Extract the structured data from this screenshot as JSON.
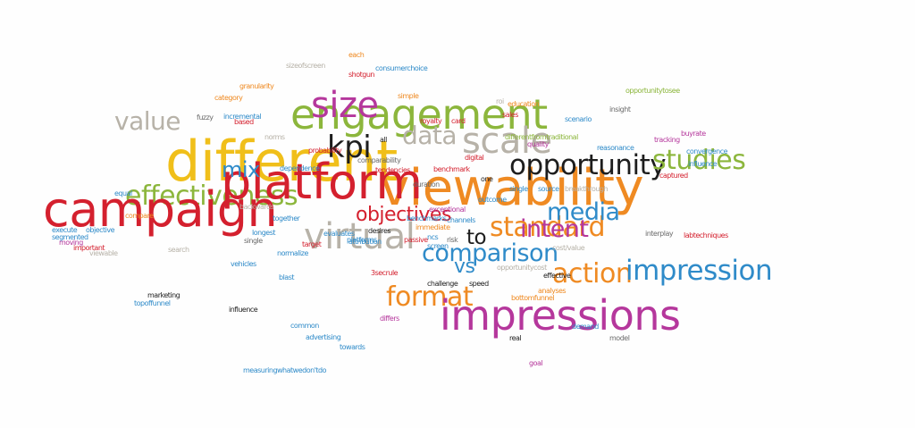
{
  "colors": {
    "red": "#d4202e",
    "green": "#8cb63c",
    "yellow": "#f0bf1a",
    "orange": "#ef8a22",
    "magenta": "#b5379c",
    "blue": "#2f8bc9",
    "black": "#1d1d1d",
    "gray": "#b7b2a8",
    "darkgray": "#6b6b6b"
  },
  "words": [
    {
      "text": "campaign",
      "color": "red",
      "size": 52
    },
    {
      "text": "platform",
      "color": "red",
      "size": 52
    },
    {
      "text": "engagement",
      "color": "green",
      "size": 44
    },
    {
      "text": "impressions",
      "color": "magenta",
      "size": 44
    },
    {
      "text": "different",
      "color": "yellow",
      "size": 56
    },
    {
      "text": "viewability",
      "color": "orange",
      "size": 52
    },
    {
      "text": "size",
      "color": "magenta",
      "size": 38
    },
    {
      "text": "scale",
      "color": "gray",
      "size": 38
    },
    {
      "text": "kpi",
      "color": "black",
      "size": 34
    },
    {
      "text": "opportunity",
      "color": "black",
      "size": 30
    },
    {
      "text": "studies",
      "color": "green",
      "size": 30
    },
    {
      "text": "impression",
      "color": "blue",
      "size": 30
    },
    {
      "text": "comparison",
      "color": "blue",
      "size": 26
    },
    {
      "text": "media",
      "color": "blue",
      "size": 26
    },
    {
      "text": "intent",
      "color": "magenta",
      "size": 26
    },
    {
      "text": "action",
      "color": "orange",
      "size": 28
    },
    {
      "text": "format",
      "color": "orange",
      "size": 28
    },
    {
      "text": "value",
      "color": "gray",
      "size": 28
    },
    {
      "text": "mix",
      "color": "blue",
      "size": 24
    },
    {
      "text": "standard",
      "color": "orange",
      "size": 30
    },
    {
      "text": "vs",
      "color": "blue",
      "size": 22
    },
    {
      "text": "to",
      "color": "black",
      "size": 22
    },
    {
      "text": "objectives",
      "color": "red",
      "size": 22
    },
    {
      "text": "effectiveness",
      "color": "green",
      "size": 30
    },
    {
      "text": "virtual",
      "color": "gray",
      "size": 36
    },
    {
      "text": "data",
      "color": "gray",
      "size": 28
    },
    {
      "text": "each",
      "color": "orange",
      "size": 8
    },
    {
      "text": "sizeofscreen",
      "color": "gray",
      "size": 8
    },
    {
      "text": "consumerchoice",
      "color": "blue",
      "size": 8
    },
    {
      "text": "shotgun",
      "color": "red",
      "size": 8
    },
    {
      "text": "granularity",
      "color": "orange",
      "size": 8
    },
    {
      "text": "category",
      "color": "orange",
      "size": 8
    },
    {
      "text": "fuzzy",
      "color": "darkgray",
      "size": 8
    },
    {
      "text": "incremental",
      "color": "blue",
      "size": 8
    },
    {
      "text": "based",
      "color": "red",
      "size": 8
    },
    {
      "text": "norms",
      "color": "gray",
      "size": 8
    },
    {
      "text": "simple",
      "color": "orange",
      "size": 8
    },
    {
      "text": "royalty",
      "color": "red",
      "size": 8
    },
    {
      "text": "card",
      "color": "red",
      "size": 8
    },
    {
      "text": "roi",
      "color": "gray",
      "size": 8
    },
    {
      "text": "education",
      "color": "orange",
      "size": 8
    },
    {
      "text": "sales",
      "color": "red",
      "size": 8
    },
    {
      "text": "scenario",
      "color": "blue",
      "size": 8
    },
    {
      "text": "insight",
      "color": "darkgray",
      "size": 8
    },
    {
      "text": "opportunitytosee",
      "color": "green",
      "size": 8
    },
    {
      "text": "buyrate",
      "color": "magenta",
      "size": 8
    },
    {
      "text": "tracking",
      "color": "magenta",
      "size": 8
    },
    {
      "text": "reasonance",
      "color": "blue",
      "size": 8
    },
    {
      "text": "convergence",
      "color": "blue",
      "size": 8
    },
    {
      "text": "influence",
      "color": "blue",
      "size": 8
    },
    {
      "text": "captured",
      "color": "red",
      "size": 8
    },
    {
      "text": "all",
      "color": "black",
      "size": 8
    },
    {
      "text": "probability",
      "color": "red",
      "size": 8
    },
    {
      "text": "comparability",
      "color": "darkgray",
      "size": 8
    },
    {
      "text": "tendencies",
      "color": "red",
      "size": 8
    },
    {
      "text": "dependence",
      "color": "blue",
      "size": 8
    },
    {
      "text": "benchmark",
      "color": "red",
      "size": 8
    },
    {
      "text": "one",
      "color": "black",
      "size": 8
    },
    {
      "text": "duration",
      "color": "darkgray",
      "size": 8
    },
    {
      "text": "single",
      "color": "blue",
      "size": 8
    },
    {
      "text": "source",
      "color": "blue",
      "size": 8
    },
    {
      "text": "breakthrough",
      "color": "gray",
      "size": 8
    },
    {
      "text": "equal",
      "color": "blue",
      "size": 8
    },
    {
      "text": "compare",
      "color": "orange",
      "size": 8
    },
    {
      "text": "backwards",
      "color": "gray",
      "size": 8
    },
    {
      "text": "together",
      "color": "blue",
      "size": 8
    },
    {
      "text": "longest",
      "color": "blue",
      "size": 8
    },
    {
      "text": "single",
      "color": "darkgray",
      "size": 8
    },
    {
      "text": "target",
      "color": "red",
      "size": 8
    },
    {
      "text": "evaluates",
      "color": "blue",
      "size": 8
    },
    {
      "text": "platforms",
      "color": "blue",
      "size": 8
    },
    {
      "text": "desires",
      "color": "black",
      "size": 8
    },
    {
      "text": "attribution",
      "color": "blue",
      "size": 8
    },
    {
      "text": "passive",
      "color": "red",
      "size": 8
    },
    {
      "text": "risk",
      "color": "darkgray",
      "size": 8
    },
    {
      "text": "normalize",
      "color": "blue",
      "size": 8
    },
    {
      "text": "execute",
      "color": "blue",
      "size": 8
    },
    {
      "text": "objective",
      "color": "blue",
      "size": 8
    },
    {
      "text": "segmented",
      "color": "blue",
      "size": 8
    },
    {
      "text": "moving",
      "color": "magenta",
      "size": 8
    },
    {
      "text": "important",
      "color": "red",
      "size": 8
    },
    {
      "text": "viewable",
      "color": "gray",
      "size": 8
    },
    {
      "text": "search",
      "color": "gray",
      "size": 8
    },
    {
      "text": "vehicles",
      "color": "blue",
      "size": 8
    },
    {
      "text": "blast",
      "color": "blue",
      "size": 8
    },
    {
      "text": "3secrule",
      "color": "red",
      "size": 8
    },
    {
      "text": "interplay",
      "color": "darkgray",
      "size": 8
    },
    {
      "text": "labtechniques",
      "color": "red",
      "size": 8
    },
    {
      "text": "cost/value",
      "color": "gray",
      "size": 8
    },
    {
      "text": "opportunitycost",
      "color": "gray",
      "size": 8
    },
    {
      "text": "effective",
      "color": "black",
      "size": 8
    },
    {
      "text": "challenge",
      "color": "black",
      "size": 8
    },
    {
      "text": "speed",
      "color": "black",
      "size": 8
    },
    {
      "text": "bottomfunnel",
      "color": "orange",
      "size": 8
    },
    {
      "text": "analyses",
      "color": "orange",
      "size": 8
    },
    {
      "text": "demand",
      "color": "blue",
      "size": 8
    },
    {
      "text": "model",
      "color": "darkgray",
      "size": 8
    },
    {
      "text": "marketing",
      "color": "black",
      "size": 8
    },
    {
      "text": "topoffunnel",
      "color": "blue",
      "size": 8
    },
    {
      "text": "influence",
      "color": "black",
      "size": 8
    },
    {
      "text": "common",
      "color": "blue",
      "size": 8
    },
    {
      "text": "advertising",
      "color": "blue",
      "size": 8
    },
    {
      "text": "towards",
      "color": "blue",
      "size": 8
    },
    {
      "text": "differs",
      "color": "magenta",
      "size": 8
    },
    {
      "text": "real",
      "color": "black",
      "size": 8
    },
    {
      "text": "goal",
      "color": "magenta",
      "size": 8
    },
    {
      "text": "measuringwhatwedon'tdo",
      "color": "blue",
      "size": 8
    },
    {
      "text": "outcome",
      "color": "blue",
      "size": 8
    },
    {
      "text": "benchmarks",
      "color": "blue",
      "size": 8
    },
    {
      "text": "immediate",
      "color": "orange",
      "size": 8
    },
    {
      "text": "ncs",
      "color": "blue",
      "size": 8
    },
    {
      "text": "screen",
      "color": "blue",
      "size": 8
    },
    {
      "text": "channels",
      "color": "blue",
      "size": 8
    },
    {
      "text": "exceptional",
      "color": "magenta",
      "size": 8
    },
    {
      "text": "quality",
      "color": "magenta",
      "size": 8
    },
    {
      "text": "digital",
      "color": "red",
      "size": 8
    },
    {
      "text": "differentfromtraditional",
      "color": "green",
      "size": 8
    }
  ]
}
